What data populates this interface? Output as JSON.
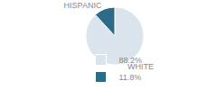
{
  "chart_data": {
    "type": "pie",
    "categories": [
      "WHITE",
      "HISPANIC"
    ],
    "values": [
      88.2,
      11.8
    ],
    "value_labels": [
      "88.2%",
      "11.8%"
    ],
    "colors": [
      "#d9e4ec",
      "#2e6b8a"
    ],
    "legend": "bottom"
  }
}
